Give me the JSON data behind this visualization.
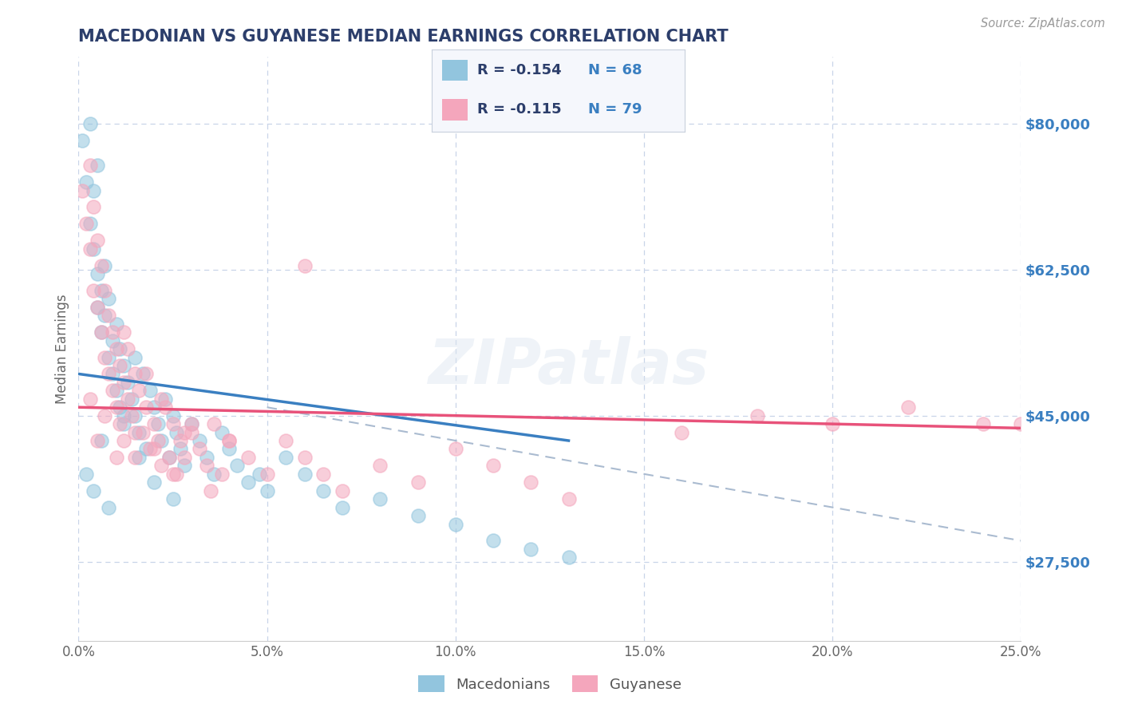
{
  "title": "MACEDONIAN VS GUYANESE MEDIAN EARNINGS CORRELATION CHART",
  "source_text": "Source: ZipAtlas.com",
  "ylabel": "Median Earnings",
  "xlim": [
    0.0,
    0.25
  ],
  "ylim": [
    18000,
    88000
  ],
  "xticks": [
    0.0,
    0.05,
    0.1,
    0.15,
    0.2,
    0.25
  ],
  "xticklabels": [
    "0.0%",
    "5.0%",
    "10.0%",
    "15.0%",
    "20.0%",
    "25.0%"
  ],
  "yticks_right": [
    27500,
    45000,
    62500,
    80000
  ],
  "yticklabels_right": [
    "$27,500",
    "$45,000",
    "$62,500",
    "$80,000"
  ],
  "macedonian_color": "#92c5de",
  "guyanese_color": "#f4a6bc",
  "macedonian_line_color": "#3a7fc1",
  "guyanese_line_color": "#e8527a",
  "dashed_line_color": "#aabbd0",
  "legend_R_macedonian": "-0.154",
  "legend_N_macedonian": "68",
  "legend_R_guyanese": "-0.115",
  "legend_N_guyanese": "79",
  "legend_label_macedonian": "Macedonians",
  "legend_label_guyanese": "Guyanese",
  "background_color": "#ffffff",
  "grid_color": "#c8d4e8",
  "title_color": "#2c3e6b",
  "axis_label_color": "#666666",
  "right_tick_color": "#3a7fc1",
  "watermark": "ZIPatlas",
  "macedonian_x": [
    0.001,
    0.002,
    0.003,
    0.003,
    0.004,
    0.004,
    0.005,
    0.005,
    0.005,
    0.006,
    0.006,
    0.007,
    0.007,
    0.008,
    0.008,
    0.009,
    0.009,
    0.01,
    0.01,
    0.011,
    0.011,
    0.012,
    0.012,
    0.013,
    0.014,
    0.015,
    0.015,
    0.016,
    0.017,
    0.018,
    0.019,
    0.02,
    0.021,
    0.022,
    0.023,
    0.024,
    0.025,
    0.026,
    0.027,
    0.028,
    0.03,
    0.032,
    0.034,
    0.036,
    0.038,
    0.04,
    0.042,
    0.045,
    0.048,
    0.05,
    0.055,
    0.06,
    0.065,
    0.07,
    0.08,
    0.09,
    0.1,
    0.11,
    0.12,
    0.13,
    0.002,
    0.004,
    0.006,
    0.008,
    0.012,
    0.016,
    0.02,
    0.025
  ],
  "macedonian_y": [
    78000,
    73000,
    80000,
    68000,
    65000,
    72000,
    62000,
    75000,
    58000,
    60000,
    55000,
    63000,
    57000,
    52000,
    59000,
    50000,
    54000,
    48000,
    56000,
    46000,
    53000,
    44000,
    51000,
    49000,
    47000,
    45000,
    52000,
    43000,
    50000,
    41000,
    48000,
    46000,
    44000,
    42000,
    47000,
    40000,
    45000,
    43000,
    41000,
    39000,
    44000,
    42000,
    40000,
    38000,
    43000,
    41000,
    39000,
    37000,
    38000,
    36000,
    40000,
    38000,
    36000,
    34000,
    35000,
    33000,
    32000,
    30000,
    29000,
    28000,
    38000,
    36000,
    42000,
    34000,
    45000,
    40000,
    37000,
    35000
  ],
  "guyanese_x": [
    0.001,
    0.002,
    0.003,
    0.003,
    0.004,
    0.004,
    0.005,
    0.005,
    0.006,
    0.006,
    0.007,
    0.007,
    0.008,
    0.008,
    0.009,
    0.009,
    0.01,
    0.01,
    0.011,
    0.011,
    0.012,
    0.012,
    0.013,
    0.013,
    0.014,
    0.015,
    0.015,
    0.016,
    0.017,
    0.018,
    0.019,
    0.02,
    0.021,
    0.022,
    0.023,
    0.024,
    0.025,
    0.026,
    0.027,
    0.028,
    0.03,
    0.032,
    0.034,
    0.036,
    0.038,
    0.04,
    0.045,
    0.05,
    0.055,
    0.06,
    0.065,
    0.07,
    0.08,
    0.09,
    0.1,
    0.11,
    0.12,
    0.13,
    0.16,
    0.18,
    0.2,
    0.22,
    0.24,
    0.25,
    0.003,
    0.005,
    0.007,
    0.01,
    0.015,
    0.02,
    0.025,
    0.03,
    0.035,
    0.04,
    0.012,
    0.018,
    0.022,
    0.028,
    0.06
  ],
  "guyanese_y": [
    72000,
    68000,
    75000,
    65000,
    70000,
    60000,
    58000,
    66000,
    55000,
    63000,
    52000,
    60000,
    50000,
    57000,
    48000,
    55000,
    46000,
    53000,
    44000,
    51000,
    49000,
    42000,
    47000,
    53000,
    45000,
    50000,
    40000,
    48000,
    43000,
    46000,
    41000,
    44000,
    42000,
    39000,
    46000,
    40000,
    44000,
    38000,
    42000,
    40000,
    43000,
    41000,
    39000,
    44000,
    38000,
    42000,
    40000,
    38000,
    42000,
    40000,
    38000,
    36000,
    39000,
    37000,
    41000,
    39000,
    37000,
    35000,
    43000,
    45000,
    44000,
    46000,
    44000,
    44000,
    47000,
    42000,
    45000,
    40000,
    43000,
    41000,
    38000,
    44000,
    36000,
    42000,
    55000,
    50000,
    47000,
    43000,
    63000
  ],
  "mac_line_x0": 0.0,
  "mac_line_y0": 50000,
  "mac_line_x1": 0.13,
  "mac_line_y1": 42000,
  "guy_line_x0": 0.0,
  "guy_line_y0": 46000,
  "guy_line_x1": 0.25,
  "guy_line_y1": 43500,
  "dash_line_x0": 0.05,
  "dash_line_y0": 46000,
  "dash_line_x1": 0.25,
  "dash_line_y1": 30000
}
